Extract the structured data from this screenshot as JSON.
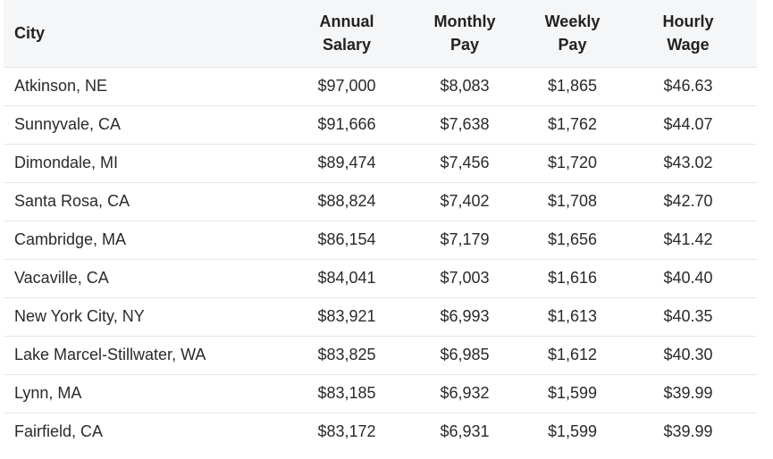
{
  "table": {
    "headers": {
      "city": "City",
      "annual": [
        "Annual",
        "Salary"
      ],
      "monthly": [
        "Monthly",
        "Pay"
      ],
      "weekly": [
        "Weekly",
        "Pay"
      ],
      "hourly": [
        "Hourly",
        "Wage"
      ]
    },
    "rows": [
      {
        "city": "Atkinson, NE",
        "annual": "$97,000",
        "monthly": "$8,083",
        "weekly": "$1,865",
        "hourly": "$46.63"
      },
      {
        "city": "Sunnyvale, CA",
        "annual": "$91,666",
        "monthly": "$7,638",
        "weekly": "$1,762",
        "hourly": "$44.07"
      },
      {
        "city": "Dimondale, MI",
        "annual": "$89,474",
        "monthly": "$7,456",
        "weekly": "$1,720",
        "hourly": "$43.02"
      },
      {
        "city": "Santa Rosa, CA",
        "annual": "$88,824",
        "monthly": "$7,402",
        "weekly": "$1,708",
        "hourly": "$42.70"
      },
      {
        "city": "Cambridge, MA",
        "annual": "$86,154",
        "monthly": "$7,179",
        "weekly": "$1,656",
        "hourly": "$41.42"
      },
      {
        "city": "Vacaville, CA",
        "annual": "$84,041",
        "monthly": "$7,003",
        "weekly": "$1,616",
        "hourly": "$40.40"
      },
      {
        "city": "New York City, NY",
        "annual": "$83,921",
        "monthly": "$6,993",
        "weekly": "$1,613",
        "hourly": "$40.35"
      },
      {
        "city": "Lake Marcel-Stillwater, WA",
        "annual": "$83,825",
        "monthly": "$6,985",
        "weekly": "$1,612",
        "hourly": "$40.30"
      },
      {
        "city": "Lynn, MA",
        "annual": "$83,185",
        "monthly": "$6,932",
        "weekly": "$1,599",
        "hourly": "$39.99"
      },
      {
        "city": "Fairfield, CA",
        "annual": "$83,172",
        "monthly": "$6,931",
        "weekly": "$1,599",
        "hourly": "$39.99"
      }
    ]
  }
}
